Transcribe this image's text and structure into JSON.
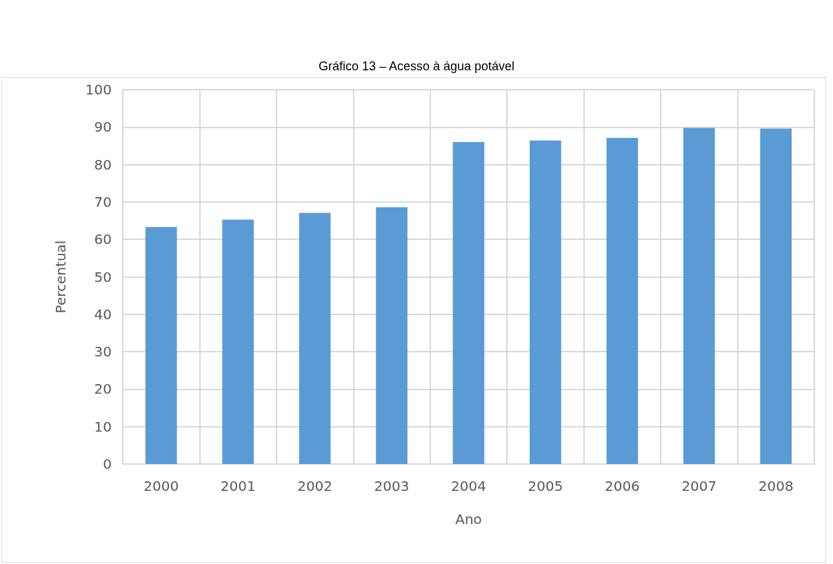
{
  "chart_data": {
    "type": "bar",
    "title": "Gráfico 13 – Acesso à água potável",
    "xlabel": "Ano",
    "ylabel": "Percentual",
    "categories": [
      "2000",
      "2001",
      "2002",
      "2003",
      "2004",
      "2005",
      "2006",
      "2007",
      "2008"
    ],
    "values": [
      63.3,
      65.3,
      67.1,
      68.6,
      86.0,
      86.4,
      87.1,
      89.8,
      89.6
    ],
    "color": "#5b9bd5",
    "ylim": [
      0,
      100
    ],
    "yticks": [
      0,
      10,
      20,
      30,
      40,
      50,
      60,
      70,
      80,
      90,
      100
    ],
    "grid": true
  }
}
